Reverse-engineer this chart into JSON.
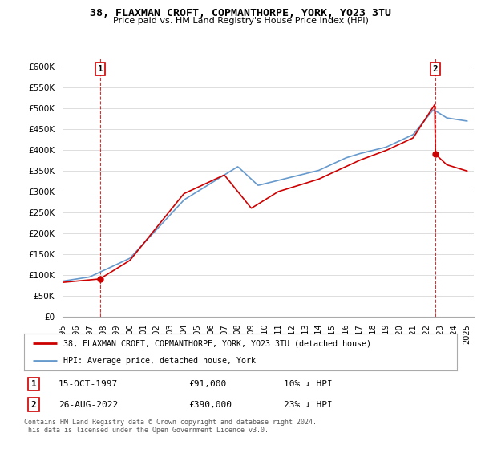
{
  "title": "38, FLAXMAN CROFT, COPMANTHORPE, YORK, YO23 3TU",
  "subtitle": "Price paid vs. HM Land Registry's House Price Index (HPI)",
  "ylim": [
    0,
    620000
  ],
  "yticks": [
    0,
    50000,
    100000,
    150000,
    200000,
    250000,
    300000,
    350000,
    400000,
    450000,
    500000,
    550000,
    600000
  ],
  "hpi_color": "#6699cc",
  "price_color": "#cc0000",
  "background_color": "#ffffff",
  "grid_color": "#dddddd",
  "point1_year": 1997.79,
  "point1_price": 91000,
  "point1_label": "1",
  "point2_year": 2022.65,
  "point2_price": 390000,
  "point2_label": "2",
  "legend_label1": "38, FLAXMAN CROFT, COPMANTHORPE, YORK, YO23 3TU (detached house)",
  "legend_label2": "HPI: Average price, detached house, York",
  "table_row1": [
    "1",
    "15-OCT-1997",
    "£91,000",
    "10% ↓ HPI"
  ],
  "table_row2": [
    "2",
    "26-AUG-2022",
    "£390,000",
    "23% ↓ HPI"
  ],
  "footer": "Contains HM Land Registry data © Crown copyright and database right 2024.\nThis data is licensed under the Open Government Licence v3.0.",
  "xlim_start": 1995.0,
  "xlim_end": 2025.5,
  "xtick_years": [
    1995,
    1996,
    1997,
    1998,
    1999,
    2000,
    2001,
    2002,
    2003,
    2004,
    2005,
    2006,
    2007,
    2008,
    2009,
    2010,
    2011,
    2012,
    2013,
    2014,
    2015,
    2016,
    2017,
    2018,
    2019,
    2020,
    2021,
    2022,
    2023,
    2024,
    2025
  ]
}
